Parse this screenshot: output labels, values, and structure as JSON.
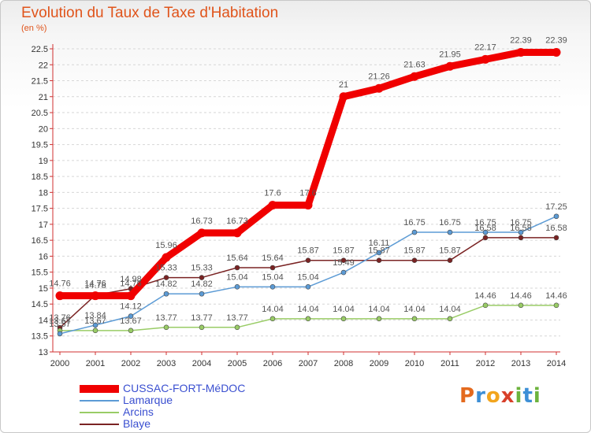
{
  "title": "Evolution du Taux de Taxe d'Habitation",
  "unit_label": "(en %)",
  "logo_text": "Proxiti",
  "chart_data": {
    "type": "line",
    "title": "Evolution du Taux de Taxe d'Habitation",
    "ylabel": "(en %)",
    "xlabel": "",
    "ylim": [
      13,
      22.5
    ],
    "ytick_step": 0.5,
    "grid": "horizontal dashed",
    "legend_placement": "bottom-left",
    "x": [
      "2000",
      "2001",
      "2002",
      "2003",
      "2004",
      "2005",
      "2006",
      "2007",
      "2008",
      "2009",
      "2010",
      "2011",
      "2012",
      "2013",
      "2014"
    ],
    "series": [
      {
        "name": "CUSSAC-FORT-MéDOC",
        "color": "#f00000",
        "values": [
          14.76,
          14.76,
          14.76,
          15.96,
          16.73,
          16.73,
          17.6,
          17.6,
          21,
          21.26,
          21.63,
          21.95,
          22.17,
          22.39,
          22.39
        ],
        "labels": [
          "14.76",
          "14.76",
          "14.76",
          "15.96",
          "16.73",
          "16.73",
          "17.6",
          "17.6",
          "21",
          "21.26",
          "21.63",
          "21.95",
          "22.17",
          "22.39",
          "22.39"
        ]
      },
      {
        "name": "Lamarque",
        "color": "#5c9bd5",
        "values": [
          13.57,
          13.84,
          14.12,
          14.82,
          14.82,
          15.04,
          15.04,
          15.04,
          15.49,
          16.11,
          16.75,
          16.75,
          16.75,
          16.75,
          17.25
        ],
        "labels": [
          "13.57",
          "13.84",
          "14.12",
          "14.82",
          "14.82",
          "15.04",
          "15.04",
          "15.04",
          "15.49",
          "16.11",
          "16.75",
          "16.75",
          "16.75",
          "16.75",
          "17.25"
        ]
      },
      {
        "name": "Arcins",
        "color": "#99cc66",
        "values": [
          13.67,
          13.67,
          13.67,
          13.77,
          13.77,
          13.77,
          14.04,
          14.04,
          14.04,
          14.04,
          14.04,
          14.04,
          14.46,
          14.46,
          14.46
        ],
        "labels": [
          "13.67",
          "13.67",
          "13.67",
          "13.77",
          "13.77",
          "13.77",
          "14.04",
          "14.04",
          "14.04",
          "14.04",
          "14.04",
          "14.04",
          "14.46",
          "14.46",
          "14.46"
        ]
      },
      {
        "name": "Blaye",
        "color": "#7a2323",
        "values": [
          13.76,
          14.78,
          14.98,
          15.33,
          15.33,
          15.64,
          15.64,
          15.87,
          15.87,
          15.87,
          15.87,
          15.87,
          16.58,
          16.58,
          16.58
        ],
        "labels": [
          "13.76",
          "14.78",
          "14.98",
          "15.33",
          "15.33",
          "15.64",
          "15.64",
          "15.87",
          "15.87",
          "15.87",
          "15.87",
          "15.87",
          "16.58",
          "16.58",
          "16.58"
        ]
      }
    ]
  }
}
